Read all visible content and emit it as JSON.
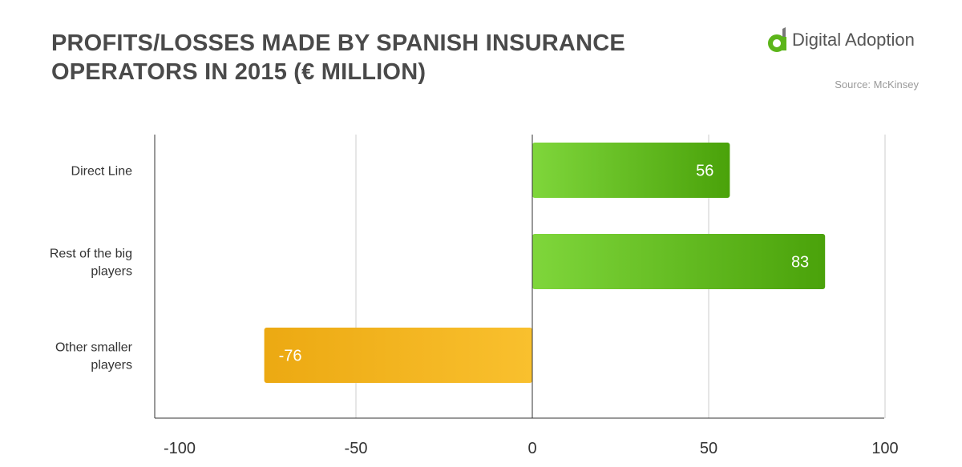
{
  "title": "PROFITS/LOSSES MADE BY SPANISH INSURANCE OPERATORS IN 2015 (€ MILLION)",
  "logo": {
    "text": "Digital Adoption",
    "icon": "digital-adoption-logo-icon"
  },
  "source": "Source: McKinsey",
  "colors": {
    "positive": "#5cb51a",
    "negative": "#f2b21b"
  },
  "chart_data": {
    "type": "bar",
    "orientation": "horizontal",
    "categories": [
      [
        "Direct Line"
      ],
      [
        "Rest of the big",
        "players"
      ],
      [
        "Other smaller",
        "players"
      ]
    ],
    "values": [
      56,
      83,
      -76
    ],
    "xlim": [
      -100,
      100
    ],
    "xticks": [
      "-100",
      "-50",
      "0",
      "50",
      "100"
    ],
    "grid": true
  }
}
